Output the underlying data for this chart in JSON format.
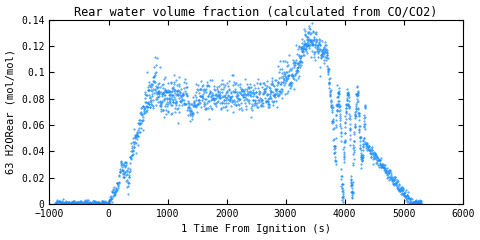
{
  "title": "Rear water volume fraction (calculated from CO/CO2)",
  "xlabel": "1 Time From Ignition (s)",
  "ylabel": "63 H2ORear (mol/mol)",
  "xlim": [
    -1000,
    6000
  ],
  "ylim": [
    0,
    0.14
  ],
  "xticks": [
    -1000,
    0,
    1000,
    2000,
    3000,
    4000,
    5000,
    6000
  ],
  "yticks": [
    0,
    0.02,
    0.04,
    0.06,
    0.08,
    0.1,
    0.12,
    0.14
  ],
  "ytick_labels": [
    "0",
    "0.02",
    "0.04",
    "0.06",
    "0.08",
    "0.1",
    "0.12",
    "0.14"
  ],
  "line_color": "#1e8fff",
  "bg_color": "#ffffff",
  "title_fontsize": 8.5,
  "label_fontsize": 7.5,
  "tick_fontsize": 7
}
